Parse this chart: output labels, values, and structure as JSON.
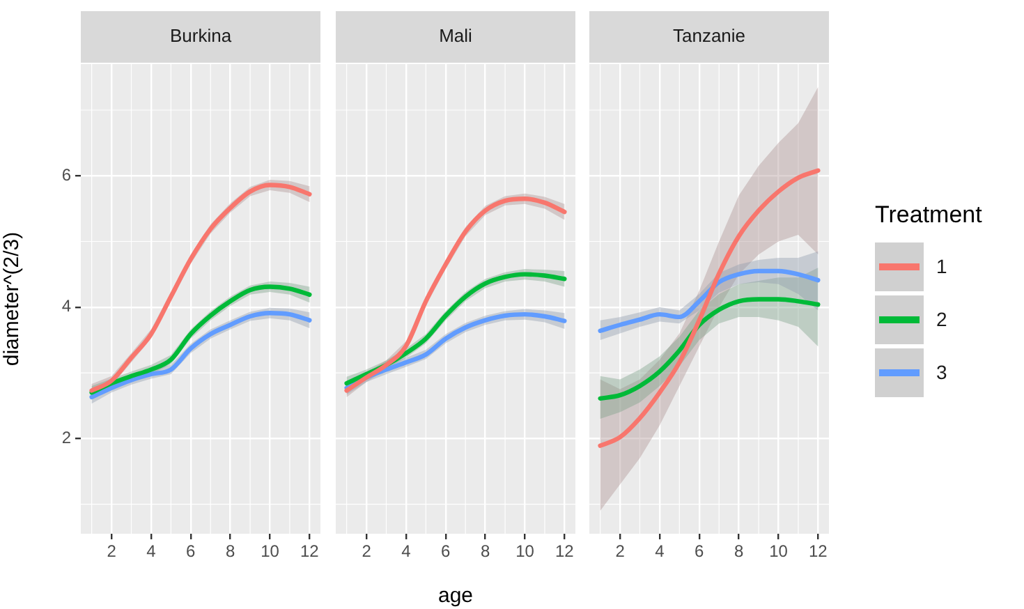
{
  "chart_data": [
    {
      "type": "line",
      "title": "Burkina",
      "ylabel": "diameter^(2/3)",
      "x": [
        1,
        2,
        3,
        4,
        5,
        6,
        7,
        8,
        9,
        10,
        11,
        12
      ],
      "xlim": [
        0.45,
        12.55
      ],
      "xticks": [
        2,
        4,
        6,
        8,
        10,
        12
      ],
      "ylim": [
        0.55,
        7.7
      ],
      "yticks": [
        2,
        4,
        6
      ],
      "grid": true,
      "series": [
        {
          "color": "#f8766d",
          "values": [
            2.73,
            2.88,
            3.23,
            3.59,
            4.16,
            4.73,
            5.19,
            5.51,
            5.76,
            5.86,
            5.83,
            5.72
          ],
          "lower": [
            2.63,
            2.81,
            3.16,
            3.52,
            4.09,
            4.66,
            5.12,
            5.44,
            5.69,
            5.78,
            5.74,
            5.6
          ],
          "upper": [
            2.83,
            2.95,
            3.3,
            3.66,
            4.23,
            4.8,
            5.26,
            5.58,
            5.83,
            5.94,
            5.92,
            5.84
          ]
        },
        {
          "color": "#00ba38",
          "values": [
            2.7,
            2.84,
            2.95,
            3.05,
            3.2,
            3.59,
            3.87,
            4.09,
            4.26,
            4.31,
            4.28,
            4.19
          ],
          "lower": [
            2.6,
            2.77,
            2.88,
            2.98,
            3.13,
            3.52,
            3.8,
            4.02,
            4.19,
            4.23,
            4.19,
            4.07
          ],
          "upper": [
            2.8,
            2.91,
            3.02,
            3.12,
            3.27,
            3.66,
            3.94,
            4.16,
            4.33,
            4.39,
            4.37,
            4.31
          ]
        },
        {
          "color": "#619cff",
          "values": [
            2.63,
            2.77,
            2.89,
            2.98,
            3.05,
            3.37,
            3.59,
            3.73,
            3.86,
            3.91,
            3.89,
            3.8
          ],
          "lower": [
            2.53,
            2.7,
            2.82,
            2.91,
            2.98,
            3.3,
            3.52,
            3.66,
            3.79,
            3.83,
            3.8,
            3.68
          ],
          "upper": [
            2.73,
            2.84,
            2.96,
            3.05,
            3.12,
            3.44,
            3.66,
            3.8,
            3.93,
            3.99,
            3.98,
            3.92
          ]
        }
      ]
    },
    {
      "type": "line",
      "title": "Mali",
      "xlabel": "age",
      "x": [
        1,
        2,
        3,
        4,
        5,
        6,
        7,
        8,
        9,
        10,
        11,
        12
      ],
      "xlim": [
        0.45,
        12.55
      ],
      "xticks": [
        2,
        4,
        6,
        8,
        10,
        12
      ],
      "ylim": [
        0.55,
        7.7
      ],
      "yticks": [
        2,
        4,
        6
      ],
      "grid": true,
      "tick_labels": "x",
      "series": [
        {
          "color": "#f8766d",
          "values": [
            2.73,
            2.93,
            3.12,
            3.41,
            4.09,
            4.65,
            5.15,
            5.47,
            5.62,
            5.65,
            5.59,
            5.45
          ],
          "lower": [
            2.63,
            2.86,
            3.05,
            3.34,
            4.02,
            4.58,
            5.08,
            5.4,
            5.55,
            5.57,
            5.5,
            5.33
          ],
          "upper": [
            2.83,
            3,
            3.19,
            3.48,
            4.16,
            4.72,
            5.22,
            5.54,
            5.69,
            5.73,
            5.68,
            5.57
          ]
        },
        {
          "color": "#00ba38",
          "values": [
            2.84,
            2.98,
            3.12,
            3.3,
            3.52,
            3.87,
            4.16,
            4.36,
            4.46,
            4.5,
            4.48,
            4.43
          ],
          "lower": [
            2.74,
            2.91,
            3.05,
            3.23,
            3.45,
            3.8,
            4.09,
            4.29,
            4.39,
            4.42,
            4.39,
            4.31
          ],
          "upper": [
            2.94,
            3.05,
            3.19,
            3.37,
            3.59,
            3.94,
            4.23,
            4.43,
            4.53,
            4.58,
            4.57,
            4.55
          ]
        },
        {
          "color": "#619cff",
          "values": [
            2.77,
            2.93,
            3.05,
            3.16,
            3.28,
            3.52,
            3.69,
            3.8,
            3.87,
            3.89,
            3.86,
            3.79
          ],
          "lower": [
            2.67,
            2.86,
            2.98,
            3.09,
            3.21,
            3.45,
            3.62,
            3.73,
            3.8,
            3.81,
            3.77,
            3.67
          ],
          "upper": [
            2.87,
            3,
            3.12,
            3.23,
            3.35,
            3.59,
            3.76,
            3.87,
            3.94,
            3.97,
            3.95,
            3.91
          ]
        }
      ]
    },
    {
      "type": "line",
      "title": "Tanzanie",
      "legend": "right",
      "legend_title": "Treatment",
      "x": [
        1,
        2,
        3,
        4,
        5,
        6,
        7,
        8,
        9,
        10,
        11,
        12
      ],
      "xlim": [
        0.45,
        12.55
      ],
      "xticks": [
        2,
        4,
        6,
        8,
        10,
        12
      ],
      "ylim": [
        0.55,
        7.7
      ],
      "yticks": [
        2,
        4,
        6
      ],
      "grid": true,
      "tick_labels": "x",
      "series": [
        {
          "name": "1",
          "color": "#f8766d",
          "values": [
            1.89,
            2.02,
            2.31,
            2.7,
            3.16,
            3.8,
            4.51,
            5.08,
            5.47,
            5.76,
            5.97,
            6.08
          ],
          "lower": [
            0.9,
            1.3,
            1.7,
            2.2,
            2.8,
            3.4,
            4,
            4.5,
            4.8,
            5,
            5.1,
            4.8
          ],
          "upper": [
            2.9,
            2.75,
            2.9,
            3.2,
            3.6,
            4.25,
            5,
            5.7,
            6.15,
            6.5,
            6.8,
            7.35
          ]
        },
        {
          "name": "2",
          "color": "#00ba38",
          "values": [
            2.61,
            2.66,
            2.8,
            3.02,
            3.34,
            3.73,
            3.96,
            4.09,
            4.12,
            4.12,
            4.09,
            4.04
          ],
          "lower": [
            2.3,
            2.4,
            2.55,
            2.8,
            3.1,
            3.5,
            3.75,
            3.85,
            3.85,
            3.8,
            3.7,
            3.4
          ],
          "upper": [
            2.95,
            2.9,
            3.05,
            3.25,
            3.55,
            3.95,
            4.2,
            4.35,
            4.4,
            4.45,
            4.45,
            4.6
          ]
        },
        {
          "name": "3",
          "color": "#619cff",
          "values": [
            3.64,
            3.73,
            3.81,
            3.89,
            3.85,
            4.09,
            4.38,
            4.5,
            4.55,
            4.55,
            4.5,
            4.41
          ],
          "lower": [
            3.5,
            3.6,
            3.7,
            3.78,
            3.75,
            3.95,
            4.22,
            4.35,
            4.38,
            4.35,
            4.2,
            3.95
          ],
          "upper": [
            3.8,
            3.85,
            3.92,
            4,
            3.95,
            4.2,
            4.52,
            4.65,
            4.72,
            4.75,
            4.75,
            4.85
          ]
        }
      ]
    }
  ]
}
